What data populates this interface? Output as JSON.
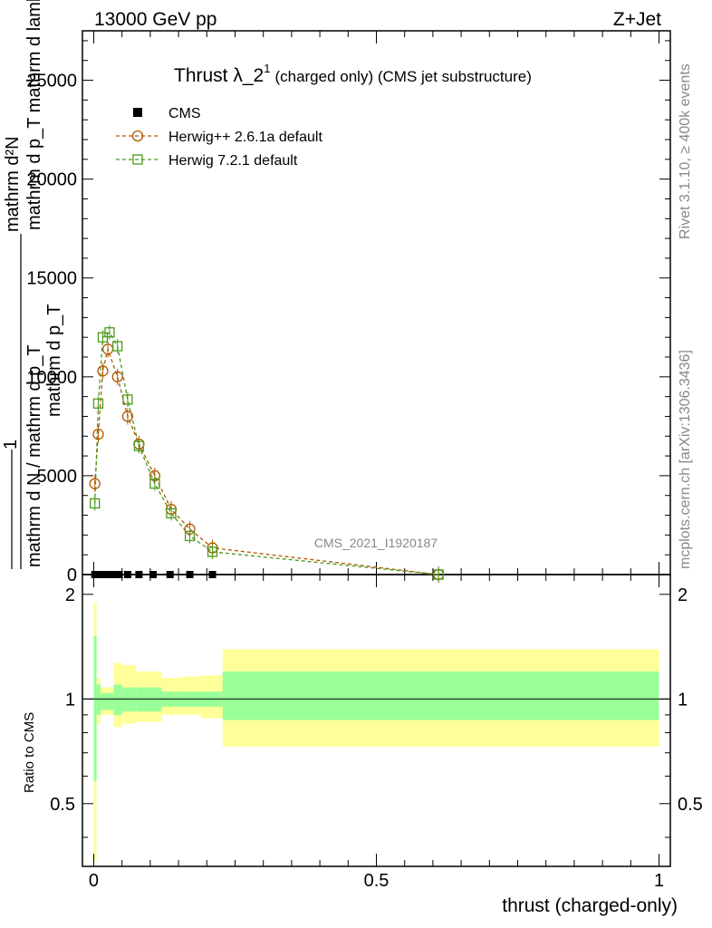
{
  "header": {
    "energy": "13000 GeV pp",
    "process": "Z+Jet",
    "rivet": "Rivet 3.1.10, ≥ 400k events",
    "mcplots": "mcplots.cern.ch [arXiv:1306.3436]",
    "analysis": "CMS_2021_I1920187"
  },
  "colors": {
    "cms": "#000000",
    "herwigpp": "#b05800",
    "herwig7": "#4c9a1c",
    "band_inner": "#99ff99",
    "band_outer": "#ffff99",
    "watermark": "#888888"
  },
  "chart_data": [
    {
      "type": "line",
      "title": "Thrust λ_2",
      "title_sup": "1",
      "title_suffix": "(charged only) (CMS jet substructure)",
      "ylabel_numerator": "mathrm d²N",
      "ylabel_numerator_2": "mathrm d p_T mathrm d lambda",
      "ylabel_one": "1",
      "ylabel_denominator": "mathrm d N / mathrm d p_T",
      "ylabel_denominator_2": "mathrm d p_T",
      "xlim": [
        -0.02,
        1.02
      ],
      "ylim": [
        0,
        27500
      ],
      "yticks": [
        0,
        5000,
        10000,
        15000,
        20000,
        25000
      ],
      "ytick_labels": [
        "0",
        "5000",
        "10000",
        "15000",
        "20000",
        "25000"
      ],
      "legend": [
        "CMS",
        "Herwig++ 2.6.1a default",
        "Herwig 7.2.1 default"
      ],
      "series": [
        {
          "name": "CMS",
          "x": [
            0.002,
            0.008,
            0.015,
            0.025,
            0.035,
            0.045,
            0.06,
            0.08,
            0.105,
            0.135,
            0.17,
            0.21
          ],
          "values": [
            0,
            0,
            0,
            0,
            0,
            0,
            0,
            0,
            0,
            0,
            0,
            0
          ]
        },
        {
          "name": "Herwig++ 2.6.1a default",
          "x": [
            0.002,
            0.008,
            0.016,
            0.025,
            0.042,
            0.06,
            0.08,
            0.108,
            0.137,
            0.17,
            0.21,
            0.61
          ],
          "values": [
            4600,
            7100,
            10300,
            11400,
            10000,
            8000,
            6600,
            5000,
            3300,
            2300,
            1350,
            0
          ]
        },
        {
          "name": "Herwig 7.2.1 default",
          "x": [
            0.002,
            0.008,
            0.016,
            0.028,
            0.042,
            0.06,
            0.08,
            0.108,
            0.137,
            0.17,
            0.21,
            0.61
          ],
          "values": [
            3600,
            8650,
            12000,
            12250,
            11550,
            8850,
            6500,
            4600,
            3100,
            1950,
            1150,
            0
          ]
        }
      ]
    },
    {
      "type": "area",
      "ylabel": "Ratio to CMS",
      "xlabel": "thrust (charged-only)",
      "xlim": [
        -0.02,
        1.02
      ],
      "ylim": [
        0.33,
        2.28
      ],
      "xticks": [
        0,
        0.5,
        1
      ],
      "xtick_labels": [
        "0",
        "0.5",
        "1"
      ],
      "yticks": [
        0.5,
        1,
        2
      ],
      "ytick_labels": [
        "0.5",
        "1",
        "2"
      ],
      "bins": [
        {
          "x0": 0.0,
          "x1": 0.005,
          "inner": [
            0.58,
            1.52
          ],
          "outer": [
            0.34,
            1.9
          ]
        },
        {
          "x0": 0.005,
          "x1": 0.012,
          "inner": [
            0.9,
            1.1
          ],
          "outer": [
            0.85,
            1.15
          ]
        },
        {
          "x0": 0.012,
          "x1": 0.035,
          "inner": [
            0.93,
            1.04
          ],
          "outer": [
            0.9,
            1.08
          ]
        },
        {
          "x0": 0.035,
          "x1": 0.05,
          "inner": [
            0.9,
            1.1
          ],
          "outer": [
            0.83,
            1.27
          ]
        },
        {
          "x0": 0.05,
          "x1": 0.075,
          "inner": [
            0.92,
            1.08
          ],
          "outer": [
            0.85,
            1.25
          ]
        },
        {
          "x0": 0.075,
          "x1": 0.12,
          "inner": [
            0.92,
            1.08
          ],
          "outer": [
            0.86,
            1.2
          ]
        },
        {
          "x0": 0.12,
          "x1": 0.155,
          "inner": [
            0.95,
            1.05
          ],
          "outer": [
            0.9,
            1.15
          ]
        },
        {
          "x0": 0.155,
          "x1": 0.19,
          "inner": [
            0.95,
            1.05
          ],
          "outer": [
            0.9,
            1.16
          ]
        },
        {
          "x0": 0.19,
          "x1": 0.228,
          "inner": [
            0.95,
            1.05
          ],
          "outer": [
            0.88,
            1.17
          ]
        },
        {
          "x0": 0.228,
          "x1": 1.0,
          "inner": [
            0.87,
            1.2
          ],
          "outer": [
            0.73,
            1.39
          ]
        }
      ]
    }
  ]
}
